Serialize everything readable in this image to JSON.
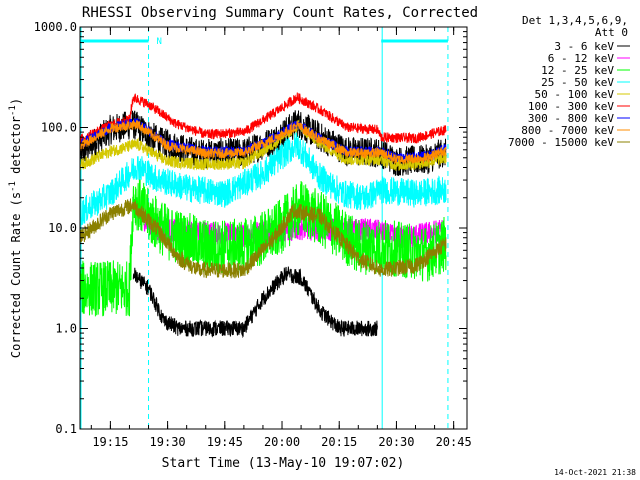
{
  "chart_data": {
    "type": "line",
    "title": "RHESSI Observing Summary Count Rates, Corrected",
    "xlabel": "Start Time (13-May-10 19:07:02)",
    "ylabel_main": "Corrected Count Rate (s",
    "ylabel_sup1": "-1",
    "ylabel_mid": " detector",
    "ylabel_sup2": "-1",
    "ylabel_end": ")",
    "yscale": "log",
    "ylim": [
      0.1,
      1000
    ],
    "y_ticks": [
      {
        "value": 0.1,
        "label": "0.1"
      },
      {
        "value": 1,
        "label": "1.0"
      },
      {
        "value": 10,
        "label": "10.0"
      },
      {
        "value": 100,
        "label": "100.0"
      },
      {
        "value": 1000,
        "label": "1000.0"
      }
    ],
    "xlim": [
      "19:07:02",
      "20:48:30"
    ],
    "x_ticks": [
      {
        "value": "19:15",
        "label": "19:15"
      },
      {
        "value": "19:30",
        "label": "19:30"
      },
      {
        "value": "19:45",
        "label": "19:45"
      },
      {
        "value": "20:00",
        "label": "20:00"
      },
      {
        "value": "20:15",
        "label": "20:15"
      },
      {
        "value": "20:30",
        "label": "20:30"
      },
      {
        "value": "20:45",
        "label": "20:45"
      }
    ],
    "legend": {
      "position": "top-right, outside",
      "header": [
        "Det 1,3,4,5,6,9,",
        "Att 0"
      ],
      "entries": [
        {
          "label": "3 - 6 keV",
          "color": "#000000"
        },
        {
          "label": "6 - 12 keV",
          "color": "#ff00ff"
        },
        {
          "label": "12 - 25 keV",
          "color": "#00ff00"
        },
        {
          "label": "25 - 50 keV",
          "color": "#00ffff"
        },
        {
          "label": "50 - 100 keV",
          "color": "#d4c800"
        },
        {
          "label": "100 - 300 keV",
          "color": "#ff0000"
        },
        {
          "label": "300 - 800 keV",
          "color": "#0000ff"
        },
        {
          "label": "800 - 7000 keV",
          "color": "#ff8c00"
        },
        {
          "label": "7000 - 15000 keV",
          "color": "#8b8000"
        }
      ]
    },
    "annotations": {
      "flag_marker": "N",
      "flag_intervals": [
        [
          "19:07:02",
          "19:25:00"
        ],
        [
          "20:26:00",
          "20:43:30"
        ]
      ],
      "flag_color": "#00ffff",
      "dashed_lines": [
        "19:25:00",
        "20:43:30"
      ],
      "solid_lines": [
        "19:07:02",
        "20:26:00"
      ],
      "timestamp": "14-Oct-2021 21:38"
    },
    "series": [
      {
        "name": "3 - 6 keV",
        "color": "#000000",
        "noise": 0.15,
        "points": [
          [
            "19:07",
            55
          ],
          [
            "19:15",
            95
          ],
          [
            "19:21",
            108
          ],
          [
            "19:28",
            72
          ],
          [
            "19:38",
            55
          ],
          [
            "19:50",
            56
          ],
          [
            "19:58",
            75
          ],
          [
            "20:04",
            112
          ],
          [
            "20:10",
            80
          ],
          [
            "20:17",
            58
          ],
          [
            "20:26",
            56
          ],
          [
            "20:30",
            46
          ],
          [
            "20:38",
            48
          ],
          [
            "20:42",
            56
          ],
          [
            "20:43",
            55
          ]
        ]
      },
      {
        "name": "6 - 12 keV",
        "color": "#ff00ff",
        "noise": 0.12,
        "points": [
          [
            "19:22",
            14
          ],
          [
            "19:27",
            10
          ],
          [
            "19:35",
            9
          ],
          [
            "19:50",
            8.5
          ],
          [
            "19:58",
            9
          ],
          [
            "20:05",
            10
          ],
          [
            "20:15",
            9.5
          ],
          [
            "20:24",
            9.5
          ],
          [
            "20:30",
            8
          ],
          [
            "20:36",
            8.5
          ],
          [
            "20:42",
            9.5
          ]
        ]
      },
      {
        "name": "12 - 25 keV",
        "color": "#00ff00",
        "noise": 0.28,
        "points": [
          [
            "19:07",
            2.5
          ],
          [
            "19:20",
            2.5
          ],
          [
            "19:21",
            20
          ],
          [
            "19:25",
            13
          ],
          [
            "19:30",
            9
          ],
          [
            "19:40",
            6.5
          ],
          [
            "19:50",
            6.5
          ],
          [
            "19:58",
            9
          ],
          [
            "20:05",
            16
          ],
          [
            "20:12",
            11
          ],
          [
            "20:20",
            6.5
          ],
          [
            "20:27",
            6.5
          ],
          [
            "20:32",
            6
          ],
          [
            "20:38",
            5.5
          ],
          [
            "20:43",
            7
          ]
        ]
      },
      {
        "name": "25 - 50 keV",
        "color": "#00ffff",
        "noise": 0.14,
        "points": [
          [
            "19:07",
            14
          ],
          [
            "19:15",
            22
          ],
          [
            "19:22",
            42
          ],
          [
            "19:27",
            31
          ],
          [
            "19:35",
            25
          ],
          [
            "19:45",
            22
          ],
          [
            "19:55",
            35
          ],
          [
            "20:01",
            56
          ],
          [
            "20:04",
            68
          ],
          [
            "20:10",
            32
          ],
          [
            "20:16",
            22
          ],
          [
            "20:22",
            20
          ],
          [
            "20:26",
            24
          ],
          [
            "20:35",
            22
          ],
          [
            "20:43",
            24
          ]
        ]
      },
      {
        "name": "50 - 100 keV",
        "color": "#d4c800",
        "noise": 0.06,
        "points": [
          [
            "19:07",
            42
          ],
          [
            "19:15",
            58
          ],
          [
            "19:22",
            68
          ],
          [
            "19:30",
            46
          ],
          [
            "19:40",
            43
          ],
          [
            "19:50",
            44
          ],
          [
            "19:58",
            70
          ],
          [
            "20:04",
            105
          ],
          [
            "20:10",
            70
          ],
          [
            "20:17",
            48
          ],
          [
            "20:26",
            48
          ],
          [
            "20:30",
            42
          ],
          [
            "20:38",
            45
          ],
          [
            "20:43",
            50
          ]
        ]
      },
      {
        "name": "100 - 300 keV",
        "color": "#ff0000",
        "noise": 0.05,
        "points": [
          [
            "19:07",
            75
          ],
          [
            "19:15",
            105
          ],
          [
            "19:20",
            120
          ],
          [
            "19:21",
            200
          ],
          [
            "19:25",
            170
          ],
          [
            "19:32",
            110
          ],
          [
            "19:40",
            85
          ],
          [
            "19:50",
            90
          ],
          [
            "19:58",
            140
          ],
          [
            "20:04",
            200
          ],
          [
            "20:10",
            150
          ],
          [
            "20:17",
            100
          ],
          [
            "20:25",
            95
          ],
          [
            "20:26",
            80
          ],
          [
            "20:35",
            78
          ],
          [
            "20:43",
            95
          ]
        ]
      },
      {
        "name": "300 - 800 keV",
        "color": "#0000ff",
        "noise": 0.05,
        "points": [
          [
            "19:07",
            68
          ],
          [
            "19:15",
            100
          ],
          [
            "19:22",
            112
          ],
          [
            "19:30",
            68
          ],
          [
            "19:40",
            58
          ],
          [
            "19:50",
            58
          ],
          [
            "19:58",
            80
          ],
          [
            "20:04",
            108
          ],
          [
            "20:10",
            78
          ],
          [
            "20:17",
            58
          ],
          [
            "20:26",
            58
          ],
          [
            "20:30",
            50
          ],
          [
            "20:38",
            52
          ],
          [
            "20:43",
            62
          ]
        ]
      },
      {
        "name": "800 - 7000 keV",
        "color": "#ff8c00",
        "noise": 0.05,
        "points": [
          [
            "19:07",
            65
          ],
          [
            "19:15",
            98
          ],
          [
            "19:22",
            108
          ],
          [
            "19:30",
            66
          ],
          [
            "19:40",
            55
          ],
          [
            "19:50",
            56
          ],
          [
            "19:58",
            78
          ],
          [
            "20:04",
            105
          ],
          [
            "20:10",
            76
          ],
          [
            "20:17",
            56
          ],
          [
            "20:26",
            56
          ],
          [
            "20:30",
            48
          ],
          [
            "20:38",
            50
          ],
          [
            "20:43",
            60
          ]
        ]
      },
      {
        "name": "7000 - 15000 keV",
        "color": "#8b8000",
        "noise": 0.08,
        "points": [
          [
            "19:07",
            8
          ],
          [
            "19:15",
            14
          ],
          [
            "19:21",
            17
          ],
          [
            "19:27",
            10
          ],
          [
            "19:33",
            5
          ],
          [
            "19:38",
            3.8
          ],
          [
            "19:50",
            3.8
          ],
          [
            "19:58",
            8
          ],
          [
            "20:03",
            15
          ],
          [
            "20:10",
            13
          ],
          [
            "20:20",
            5
          ],
          [
            "20:26",
            3.8
          ],
          [
            "20:35",
            4.2
          ],
          [
            "20:43",
            7
          ]
        ]
      }
    ],
    "segments": [
      {
        "name": "3 - 6 keV",
        "color": "#000000",
        "noise": 0.08,
        "points": [
          [
            "19:21",
            3.5
          ],
          [
            "19:25",
            2.5
          ],
          [
            "19:29",
            1.2
          ],
          [
            "19:33",
            1.0
          ],
          [
            "19:50",
            1.0
          ],
          [
            "19:55",
            2.0
          ],
          [
            "20:01",
            3.5
          ],
          [
            "20:05",
            3.2
          ],
          [
            "20:10",
            1.5
          ],
          [
            "20:15",
            1.0
          ],
          [
            "20:25",
            1.0
          ]
        ]
      }
    ]
  }
}
